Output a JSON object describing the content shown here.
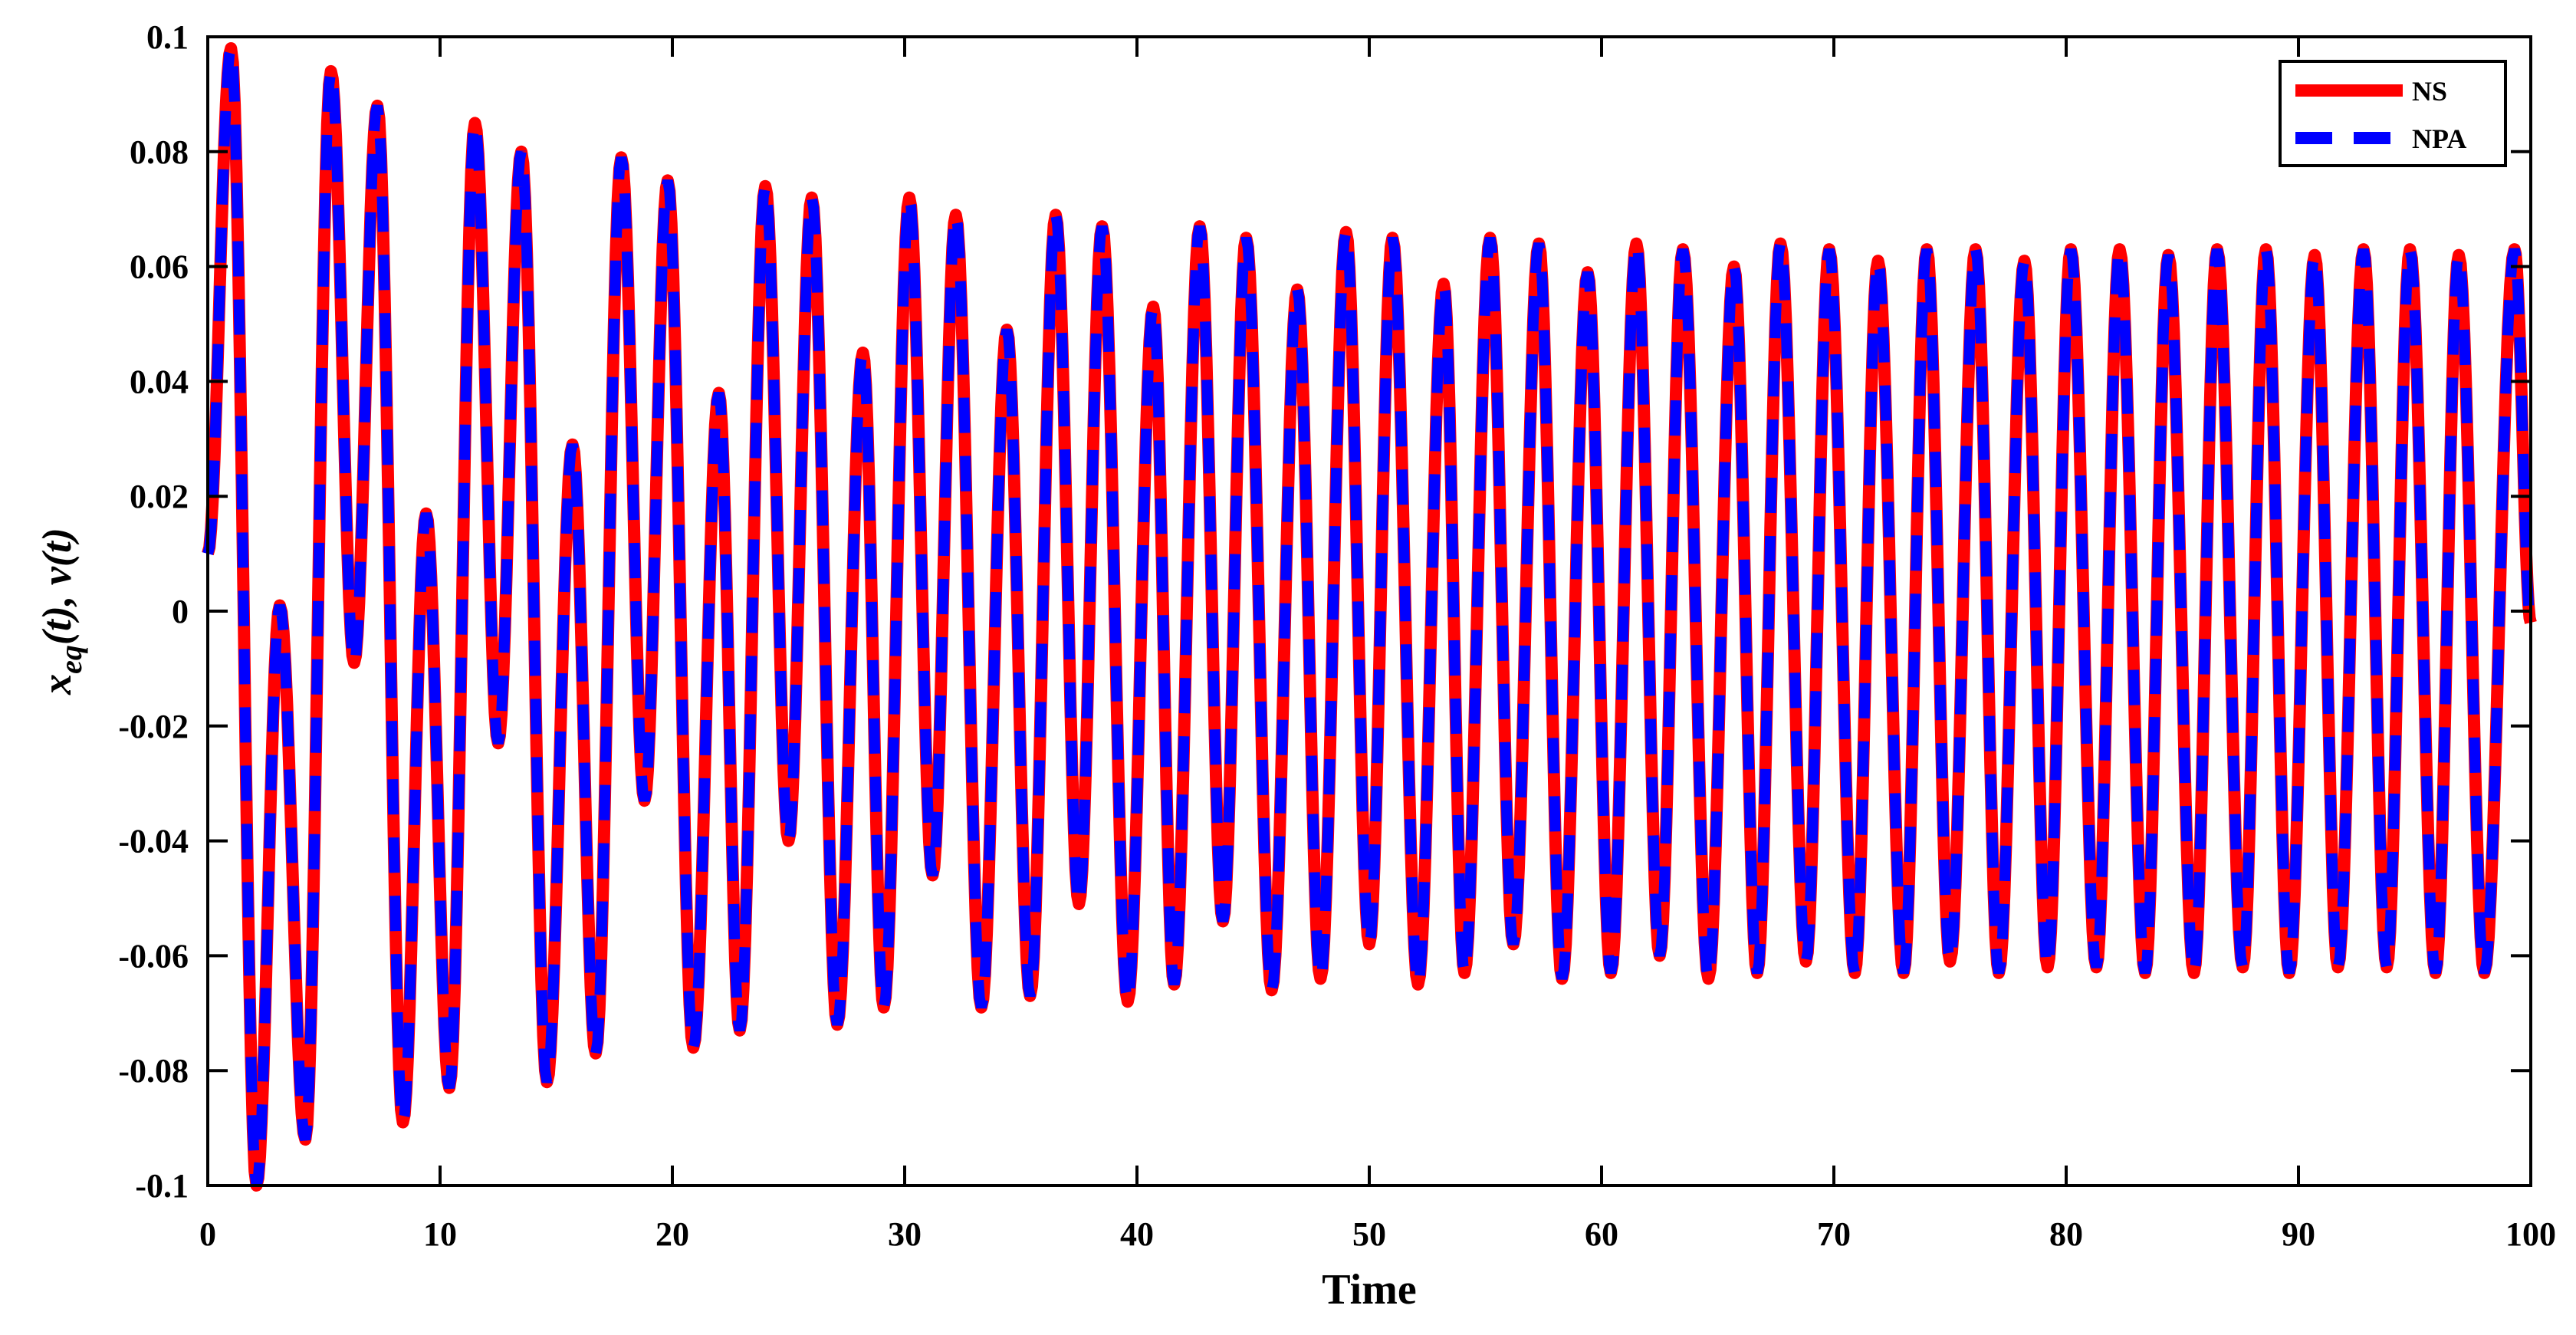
{
  "chart_data": {
    "type": "line",
    "xlabel": "Time",
    "ylabel": {
      "base": "x",
      "sub": "eq",
      "rest": "(t), v(t)"
    },
    "xlim": [
      0,
      100
    ],
    "ylim": [
      -0.1,
      0.1
    ],
    "xticks": [
      0,
      10,
      20,
      30,
      40,
      50,
      60,
      70,
      80,
      90,
      100
    ],
    "yticks": [
      -0.1,
      -0.08,
      -0.06,
      -0.04,
      -0.02,
      0,
      0.02,
      0.04,
      0.06,
      0.08,
      0.1
    ],
    "xtick_labels": [
      "0",
      "10",
      "20",
      "30",
      "40",
      "50",
      "60",
      "70",
      "80",
      "90",
      "100"
    ],
    "ytick_labels": [
      "-0.1",
      "-0.08",
      "-0.06",
      "-0.04",
      "-0.02",
      "0",
      "0.02",
      "0.04",
      "0.06",
      "0.08",
      "0.1"
    ],
    "grid": false,
    "legend_position": "top-right",
    "series": [
      {
        "name": "NS",
        "color": "#ff0000",
        "style": "solid"
      },
      {
        "name": "NPA",
        "color": "#0000ff",
        "style": "dashed"
      }
    ],
    "peaks": [
      [
        1,
        0.098
      ],
      [
        2.1,
        -0.1
      ],
      [
        3.1,
        0.001
      ],
      [
        4.2,
        -0.092
      ],
      [
        5.3,
        0.094
      ],
      [
        6.3,
        -0.009
      ],
      [
        7.3,
        0.088
      ],
      [
        8.4,
        -0.089
      ],
      [
        9.4,
        0.017
      ],
      [
        10.4,
        -0.083
      ],
      [
        11.5,
        0.085
      ],
      [
        12.5,
        -0.023
      ],
      [
        13.5,
        0.08
      ],
      [
        14.6,
        -0.082
      ],
      [
        15.7,
        0.029
      ],
      [
        16.7,
        -0.077
      ],
      [
        17.8,
        0.079
      ],
      [
        18.8,
        -0.033
      ],
      [
        19.8,
        0.075
      ],
      [
        20.9,
        -0.076
      ],
      [
        22,
        0.038
      ],
      [
        22.9,
        -0.073
      ],
      [
        24,
        0.074
      ],
      [
        25,
        -0.04
      ],
      [
        26,
        0.072
      ],
      [
        27.1,
        -0.072
      ],
      [
        28.2,
        0.045
      ],
      [
        29.1,
        -0.069
      ],
      [
        30.2,
        0.072
      ],
      [
        31.2,
        -0.046
      ],
      [
        32.2,
        0.069
      ],
      [
        33.3,
        -0.069
      ],
      [
        34.4,
        0.049
      ],
      [
        35.4,
        -0.067
      ],
      [
        36.5,
        0.069
      ],
      [
        37.5,
        -0.051
      ],
      [
        38.5,
        0.067
      ],
      [
        39.6,
        -0.068
      ],
      [
        40.7,
        0.053
      ],
      [
        41.6,
        -0.065
      ],
      [
        42.7,
        0.067
      ],
      [
        43.7,
        -0.054
      ],
      [
        44.7,
        0.065
      ],
      [
        45.8,
        -0.066
      ],
      [
        46.9,
        0.056
      ],
      [
        47.9,
        -0.064
      ],
      [
        49,
        0.066
      ],
      [
        50,
        -0.058
      ],
      [
        51,
        0.065
      ],
      [
        52.1,
        -0.065
      ],
      [
        53.2,
        0.057
      ],
      [
        54.1,
        -0.063
      ],
      [
        55.2,
        0.065
      ],
      [
        56.2,
        -0.058
      ],
      [
        57.3,
        0.064
      ],
      [
        58.3,
        -0.064
      ],
      [
        59.4,
        0.059
      ],
      [
        60.4,
        -0.063
      ],
      [
        61.5,
        0.064
      ],
      [
        62.5,
        -0.06
      ],
      [
        63.5,
        0.063
      ],
      [
        64.6,
        -0.064
      ],
      [
        65.7,
        0.06
      ],
      [
        66.7,
        -0.063
      ],
      [
        67.7,
        0.064
      ],
      [
        68.8,
        -0.061
      ],
      [
        69.8,
        0.063
      ],
      [
        70.9,
        -0.063
      ],
      [
        71.9,
        0.061
      ],
      [
        73,
        -0.063
      ],
      [
        74,
        0.063
      ],
      [
        75,
        -0.061
      ],
      [
        76.1,
        0.063
      ],
      [
        77.1,
        -0.063
      ],
      [
        78.2,
        0.061
      ],
      [
        79.2,
        -0.062
      ],
      [
        80.2,
        0.063
      ],
      [
        81.3,
        -0.062
      ],
      [
        82.3,
        0.063
      ],
      [
        83.4,
        -0.063
      ],
      [
        84.4,
        0.062
      ],
      [
        85.5,
        -0.063
      ],
      [
        86.5,
        0.063
      ],
      [
        87.6,
        -0.062
      ],
      [
        88.6,
        0.063
      ],
      [
        89.6,
        -0.063
      ],
      [
        90.7,
        0.062
      ],
      [
        91.7,
        -0.062
      ],
      [
        92.8,
        0.063
      ],
      [
        93.8,
        -0.062
      ],
      [
        94.8,
        0.063
      ],
      [
        95.9,
        -0.063
      ],
      [
        96.9,
        0.062
      ],
      [
        98,
        -0.063
      ],
      [
        99.3,
        0.063
      ]
    ],
    "start": [
      0,
      0.01
    ],
    "end": [
      100,
      -0.002
    ]
  }
}
